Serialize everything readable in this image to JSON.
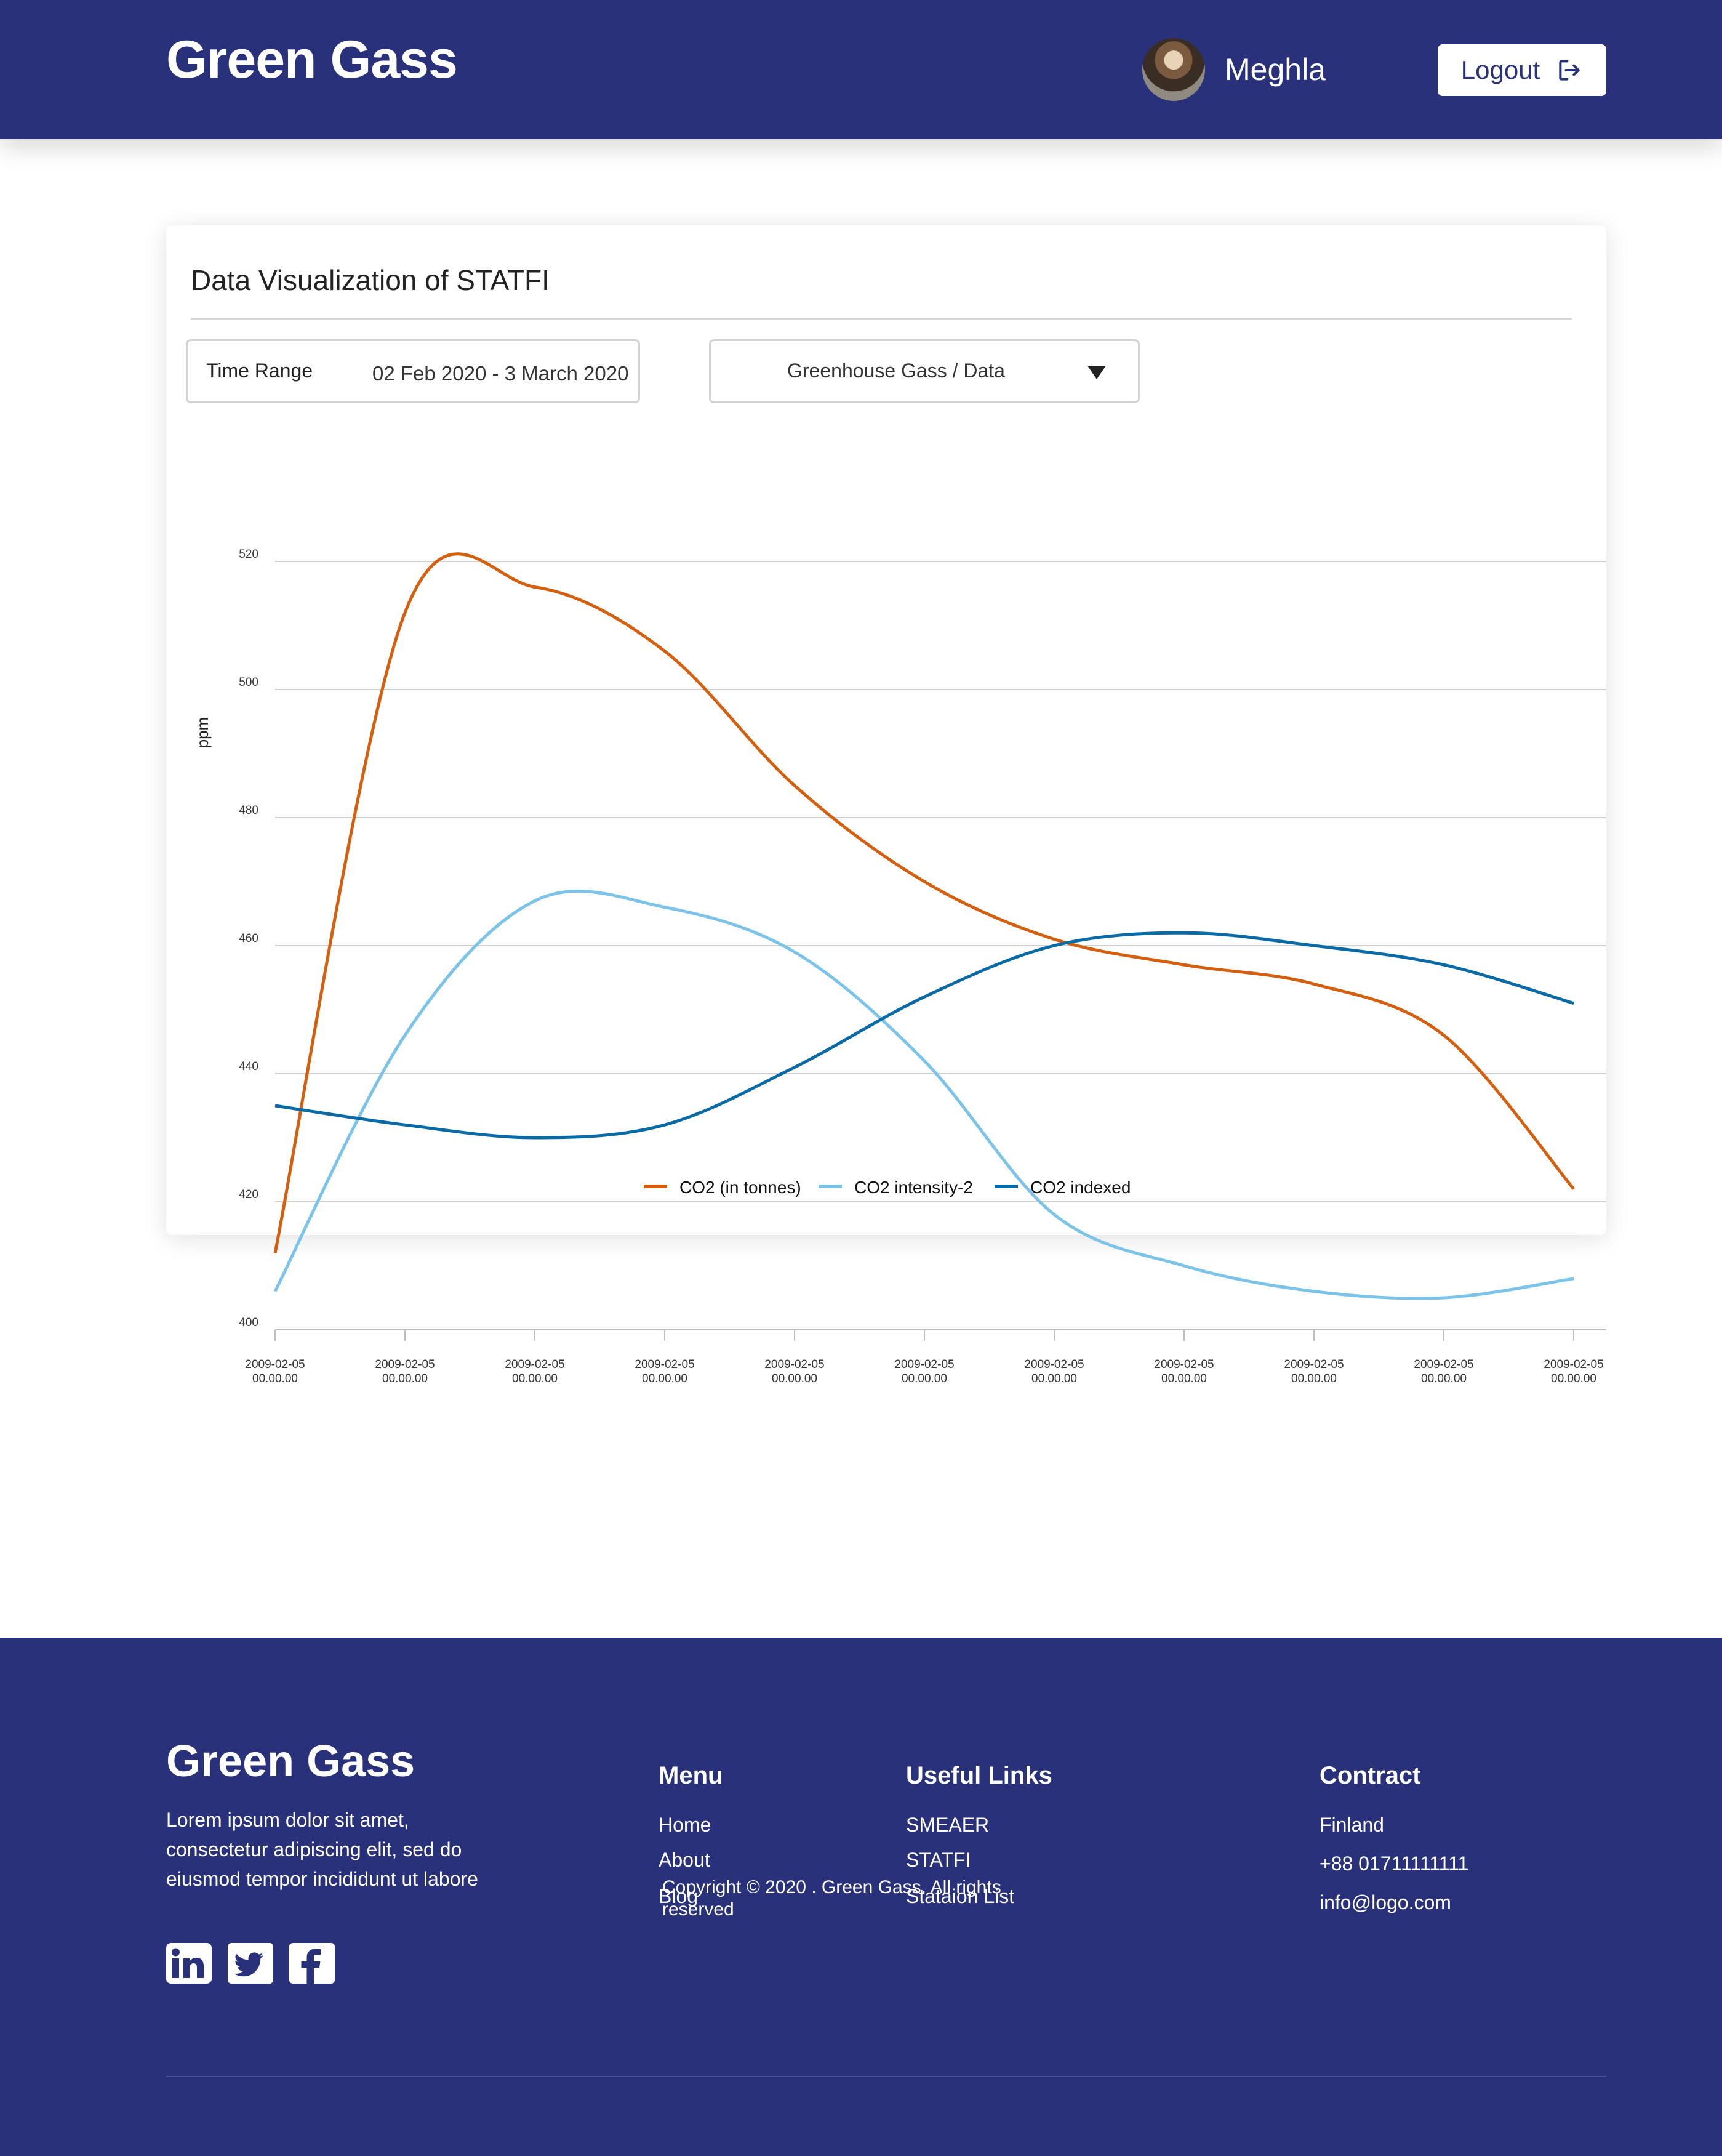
{
  "header": {
    "brand": "Green Gass",
    "user_name": "Meghla",
    "logout_label": "Logout"
  },
  "card": {
    "title": "Data Visualization of STATFI",
    "time_range_label": "Time Range",
    "time_range_value": "02 Feb 2020 - 3 March 2020",
    "dataset_selected": "Greenhouse Gass / Data"
  },
  "chart_data": {
    "type": "line",
    "title": "",
    "xlabel": "",
    "ylabel": "ppm",
    "ylim": [
      400,
      520
    ],
    "yticks": [
      400,
      420,
      440,
      460,
      480,
      500,
      520
    ],
    "grid": true,
    "legend_position": "bottom-center",
    "x": [
      "2009-02-05 00.00.00",
      "2009-02-05 00.00.00",
      "2009-02-05 00.00.00",
      "2009-02-05 00.00.00",
      "2009-02-05 00.00.00",
      "2009-02-05 00.00.00",
      "2009-02-05 00.00.00",
      "2009-02-05 00.00.00",
      "2009-02-05 00.00.00",
      "2009-02-05 00.00.00",
      "2009-02-05 00.00.00"
    ],
    "series": [
      {
        "name": "CO2 (in tonnes)",
        "color": "#d4600f",
        "values": [
          412,
          512,
          516,
          506,
          485,
          470,
          461,
          457,
          454,
          446,
          422
        ]
      },
      {
        "name": "CO2 intensity-2",
        "color": "#7cc3ea",
        "values": [
          406,
          446,
          467,
          466,
          459,
          442,
          418,
          410,
          406,
          405,
          408
        ]
      },
      {
        "name": "CO2 indexed",
        "color": "#0a6aa6",
        "values": [
          435,
          432,
          430,
          432,
          441,
          452,
          460,
          462,
          460,
          457,
          451
        ]
      }
    ]
  },
  "footer": {
    "brand": "Green Gass",
    "description": "Lorem ipsum dolor sit amet, consectetur adipiscing elit, sed do eiusmod tempor incididunt ut labore",
    "social": [
      "linkedin-icon",
      "twitter-icon",
      "facebook-icon"
    ],
    "menu_heading": "Menu",
    "menu": [
      "Home",
      "About",
      "Blog"
    ],
    "links_heading": "Useful Links",
    "links": [
      "SMEAER",
      "STATFI",
      "Stataion List"
    ],
    "contract_heading": "Contract",
    "contract": [
      "Finland",
      "+88 01711111111",
      "info@logo.com"
    ],
    "copyright": "Copyright © 2020 . Green Gass. All rights reserved"
  },
  "colors": {
    "brand_navy": "#283179",
    "co2_tonnes": "#d4600f",
    "co2_intensity": "#7cc3ea",
    "co2_indexed": "#0a6aa6"
  }
}
